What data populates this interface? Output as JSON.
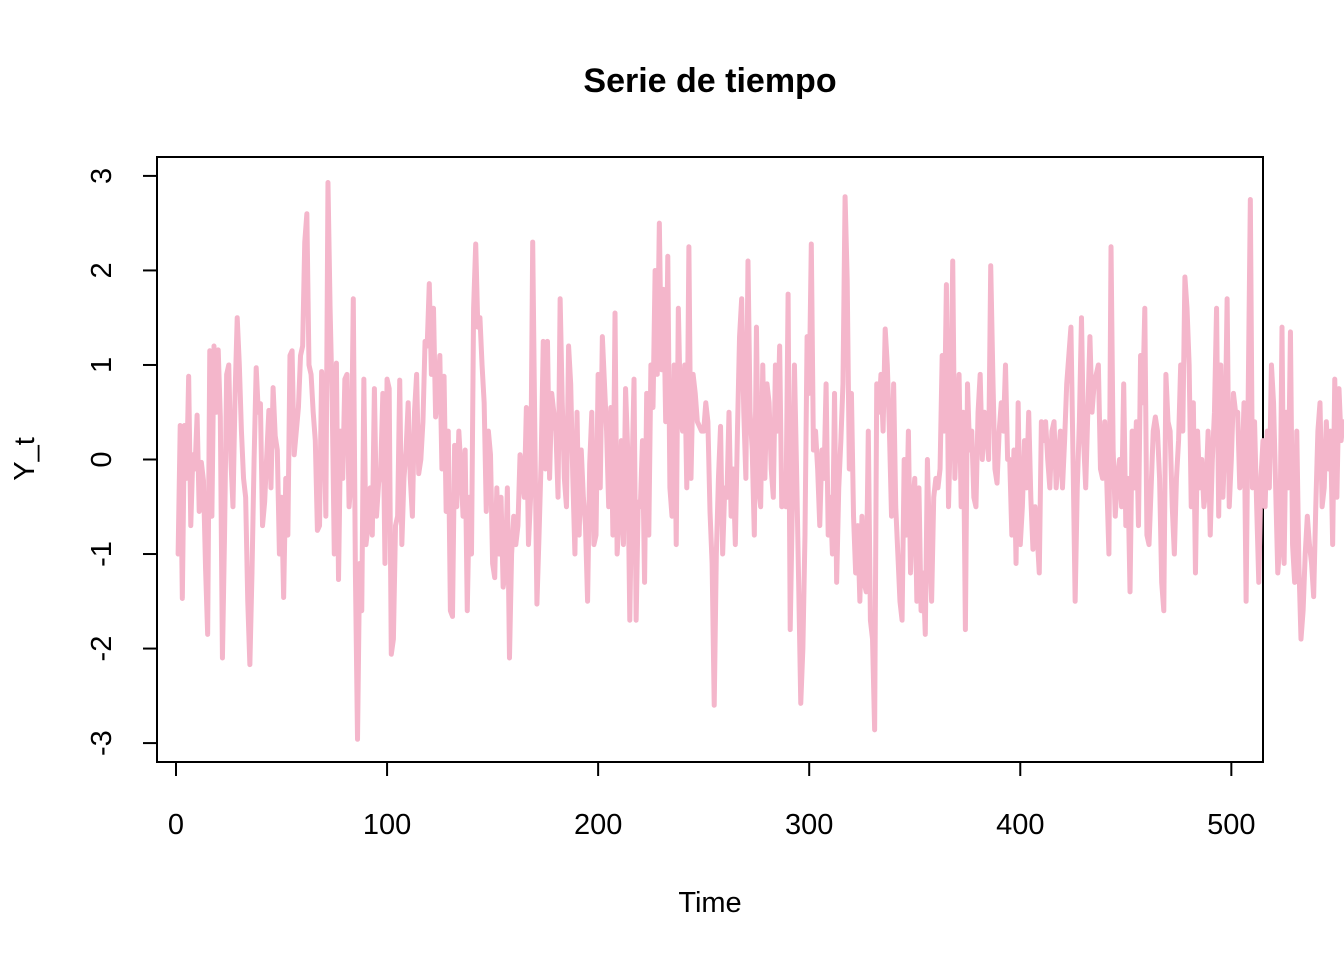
{
  "chart_data": {
    "type": "line",
    "title": "Serie de tiempo",
    "xlabel": "Time",
    "ylabel": "Y_t",
    "xlim": [
      -9,
      515
    ],
    "ylim": [
      -3.2,
      3.2
    ],
    "x_ticks": [
      0,
      100,
      200,
      300,
      400,
      500
    ],
    "y_ticks": [
      -3,
      -2,
      -1,
      0,
      1,
      2,
      3
    ],
    "grid": false,
    "legend": "none",
    "colors": {
      "series": "#F4B6CB"
    },
    "series": [
      {
        "x_start": 1,
        "x_step": 1,
        "values": [
          -1.0,
          0.36,
          -1.47,
          0.36,
          -0.2,
          0.88,
          -0.7,
          0.05,
          -0.1,
          0.47,
          -0.55,
          -0.03,
          -0.22,
          -1.15,
          -1.85,
          1.15,
          -0.6,
          1.2,
          0.5,
          1.16,
          0.45,
          -2.1,
          -0.8,
          0.9,
          1.0,
          0.0,
          -0.5,
          0.7,
          1.5,
          1.0,
          0.3,
          -0.2,
          -0.4,
          -1.5,
          -2.17,
          -1.2,
          0.0,
          0.97,
          0.5,
          0.59,
          -0.7,
          -0.45,
          0.05,
          0.52,
          -0.3,
          0.76,
          0.25,
          0.1,
          -1.0,
          -0.4,
          -1.46,
          -0.2,
          -0.8,
          1.1,
          1.15,
          0.05,
          0.3,
          0.55,
          1.1,
          1.2,
          2.3,
          2.6,
          1.0,
          0.9,
          0.5,
          0.2,
          -0.75,
          -0.7,
          0.93,
          0.55,
          -0.6,
          2.93,
          1.6,
          0.6,
          -1.0,
          1.02,
          -1.27,
          0.3,
          -0.2,
          0.85,
          0.9,
          -0.5,
          -0.2,
          1.7,
          -1.2,
          -2.96,
          -1.1,
          -1.6,
          0.85,
          -0.9,
          -0.7,
          -0.3,
          -0.8,
          0.75,
          -0.6,
          -0.25,
          -0.1,
          0.7,
          -1.1,
          0.85,
          0.75,
          -2.06,
          -1.9,
          -0.7,
          -0.6,
          0.84,
          -0.9,
          -0.2,
          0.1,
          0.6,
          -0.2,
          -0.6,
          0.5,
          0.9,
          -0.15,
          0.0,
          0.4,
          1.25,
          1.2,
          1.86,
          0.9,
          1.6,
          0.45,
          0.7,
          1.1,
          -0.1,
          0.88,
          -0.55,
          0.3,
          -1.6,
          -1.66,
          0.15,
          -0.5,
          0.3,
          -0.1,
          -0.6,
          0.1,
          -1.6,
          -0.4,
          -1.0,
          1.6,
          2.28,
          1.4,
          1.5,
          1.0,
          0.6,
          -0.55,
          0.3,
          0.05,
          -1.1,
          -1.25,
          -0.3,
          -1.0,
          -0.4,
          -1.35,
          -1.2,
          -0.3,
          -2.1,
          -1.0,
          -0.6,
          -0.9,
          -0.7,
          0.05,
          -0.15,
          -0.4,
          0.55,
          -0.9,
          -0.4,
          2.3,
          0.3,
          -1.53,
          -0.8,
          0.0,
          1.25,
          -0.1,
          1.25,
          -0.2,
          0.7,
          0.5,
          0.3,
          -0.4,
          1.7,
          0.6,
          -0.2,
          -0.5,
          1.2,
          0.8,
          -0.2,
          -1.0,
          0.5,
          -0.8,
          0.1,
          -0.4,
          -0.7,
          -1.5,
          -0.05,
          0.5,
          -0.9,
          -0.8,
          0.9,
          -0.3,
          1.3,
          0.8,
          0.3,
          -0.5,
          0.55,
          -0.8,
          1.55,
          -1.0,
          -0.6,
          0.2,
          -0.9,
          0.75,
          0.1,
          -1.7,
          -0.2,
          0.85,
          -1.7,
          -0.45,
          -0.5,
          0.2,
          -1.3,
          0.7,
          -0.8,
          1.0,
          0.55,
          2.0,
          0.9,
          2.5,
          0.95,
          1.8,
          0.4,
          2.15,
          -0.3,
          -0.6,
          1.0,
          -0.9,
          1.6,
          0.5,
          0.3,
          1.0,
          -0.3,
          2.25,
          -0.2,
          0.9,
          0.7,
          0.4,
          0.35,
          0.3,
          0.3,
          0.6,
          0.4,
          -0.55,
          -1.1,
          -2.6,
          -1.0,
          -0.2,
          0.35,
          -1.0,
          -0.3,
          -0.4,
          0.5,
          -0.6,
          -0.1,
          -0.9,
          0.3,
          1.3,
          1.7,
          0.5,
          -0.2,
          2.1,
          0.5,
          0.1,
          -0.8,
          1.4,
          -0.3,
          -0.5,
          1.0,
          -0.2,
          0.8,
          0.6,
          -0.1,
          -0.4,
          1.0,
          0.3,
          1.2,
          -0.5,
          -0.4,
          -0.5,
          1.75,
          -1.8,
          -0.5,
          1.0,
          -0.1,
          -1.3,
          -2.58,
          -2.0,
          -0.8,
          1.3,
          0.7,
          2.28,
          0.1,
          0.3,
          -0.1,
          -0.7,
          0.1,
          -0.2,
          0.8,
          -0.8,
          -0.4,
          -1.0,
          0.7,
          -1.3,
          -0.3,
          0.2,
          0.8,
          2.78,
          1.9,
          -0.1,
          0.7,
          -0.6,
          -1.2,
          -0.7,
          -1.5,
          -0.6,
          -1.3,
          -1.4,
          0.3,
          -1.7,
          -1.9,
          -2.86,
          0.8,
          0.5,
          0.9,
          0.3,
          1.38,
          1.0,
          0.3,
          -0.6,
          0.8,
          -0.5,
          -1.0,
          -1.5,
          -1.7,
          0.0,
          -0.8,
          0.3,
          -1.2,
          -0.5,
          -0.2,
          -1.5,
          -0.3,
          -1.6,
          -1.2,
          -1.85,
          0.0,
          -0.9,
          -1.5,
          -0.4,
          -0.2,
          -0.3,
          -0.1,
          1.1,
          0.3,
          1.85,
          -0.5,
          0.4,
          2.1,
          -0.2,
          0.4,
          0.9,
          -0.5,
          0.5,
          -1.8,
          0.8,
          0.1,
          0.3,
          -0.4,
          -0.5,
          0.5,
          0.9,
          0.0,
          0.5,
          0.3,
          0.0,
          2.05,
          0.9,
          -0.1,
          -0.25,
          0.3,
          0.6,
          0.3,
          1.0,
          0.0,
          0.0,
          -0.8,
          0.1,
          -1.1,
          0.6,
          -0.9,
          -0.5,
          0.2,
          -0.3,
          0.5,
          -0.4,
          -0.95,
          -0.5,
          -0.8,
          -1.2,
          0.4,
          0.2,
          0.4,
          0.0,
          -0.3,
          0.3,
          0.4,
          -0.3,
          0.0,
          0.3,
          -0.3,
          0.2,
          0.8,
          1.1,
          1.4,
          0.0,
          -1.5,
          -0.3,
          0.4,
          1.5,
          0.2,
          -0.3,
          0.5,
          1.3,
          0.5,
          0.8,
          0.9,
          1.0,
          -0.1,
          -0.2,
          0.4,
          -0.25,
          -1.0,
          2.25,
          0.1,
          -0.6,
          -0.2,
          0.0,
          -0.5,
          0.8,
          -0.7,
          -0.2,
          -1.4,
          0.3,
          -0.3,
          0.4,
          -0.7,
          1.1,
          0.6,
          1.6,
          -0.8,
          -0.9,
          -0.3,
          0.3,
          0.45,
          0.3,
          -0.2,
          -1.3,
          -1.6,
          0.9,
          0.4,
          0.3,
          -0.5,
          -1.0,
          -0.2,
          0.2,
          1.0,
          0.3,
          1.93,
          1.6,
          1.0,
          -0.5,
          0.6,
          -1.2,
          0.3,
          -0.3,
          0.0,
          -0.5,
          -0.3,
          0.3,
          -0.8,
          0.0,
          0.5,
          1.6,
          -0.6,
          1.0,
          -0.4,
          0.2,
          1.7,
          -0.5,
          0.0,
          0.7,
          0.5,
          0.5,
          -0.3,
          -0.2,
          0.6,
          -1.5,
          0.7,
          2.75,
          -0.3,
          0.4,
          -0.5,
          -1.3,
          -0.2,
          0.2,
          -0.5,
          0.3,
          -0.3,
          1.0,
          0.6,
          -0.3,
          -1.2,
          -0.9,
          1.4,
          -1.1,
          0.5,
          -0.3,
          1.35,
          -0.9,
          -1.3,
          0.3,
          -1.1,
          -1.9,
          -1.6,
          -1.0,
          -0.6,
          -0.9,
          -1.1,
          -1.45,
          -0.5,
          0.3,
          0.6,
          -0.5,
          -0.3,
          0.4,
          -0.1,
          0.3,
          -0.9,
          0.85,
          -0.4,
          0.75,
          0.2,
          0.4
        ]
      }
    ]
  }
}
